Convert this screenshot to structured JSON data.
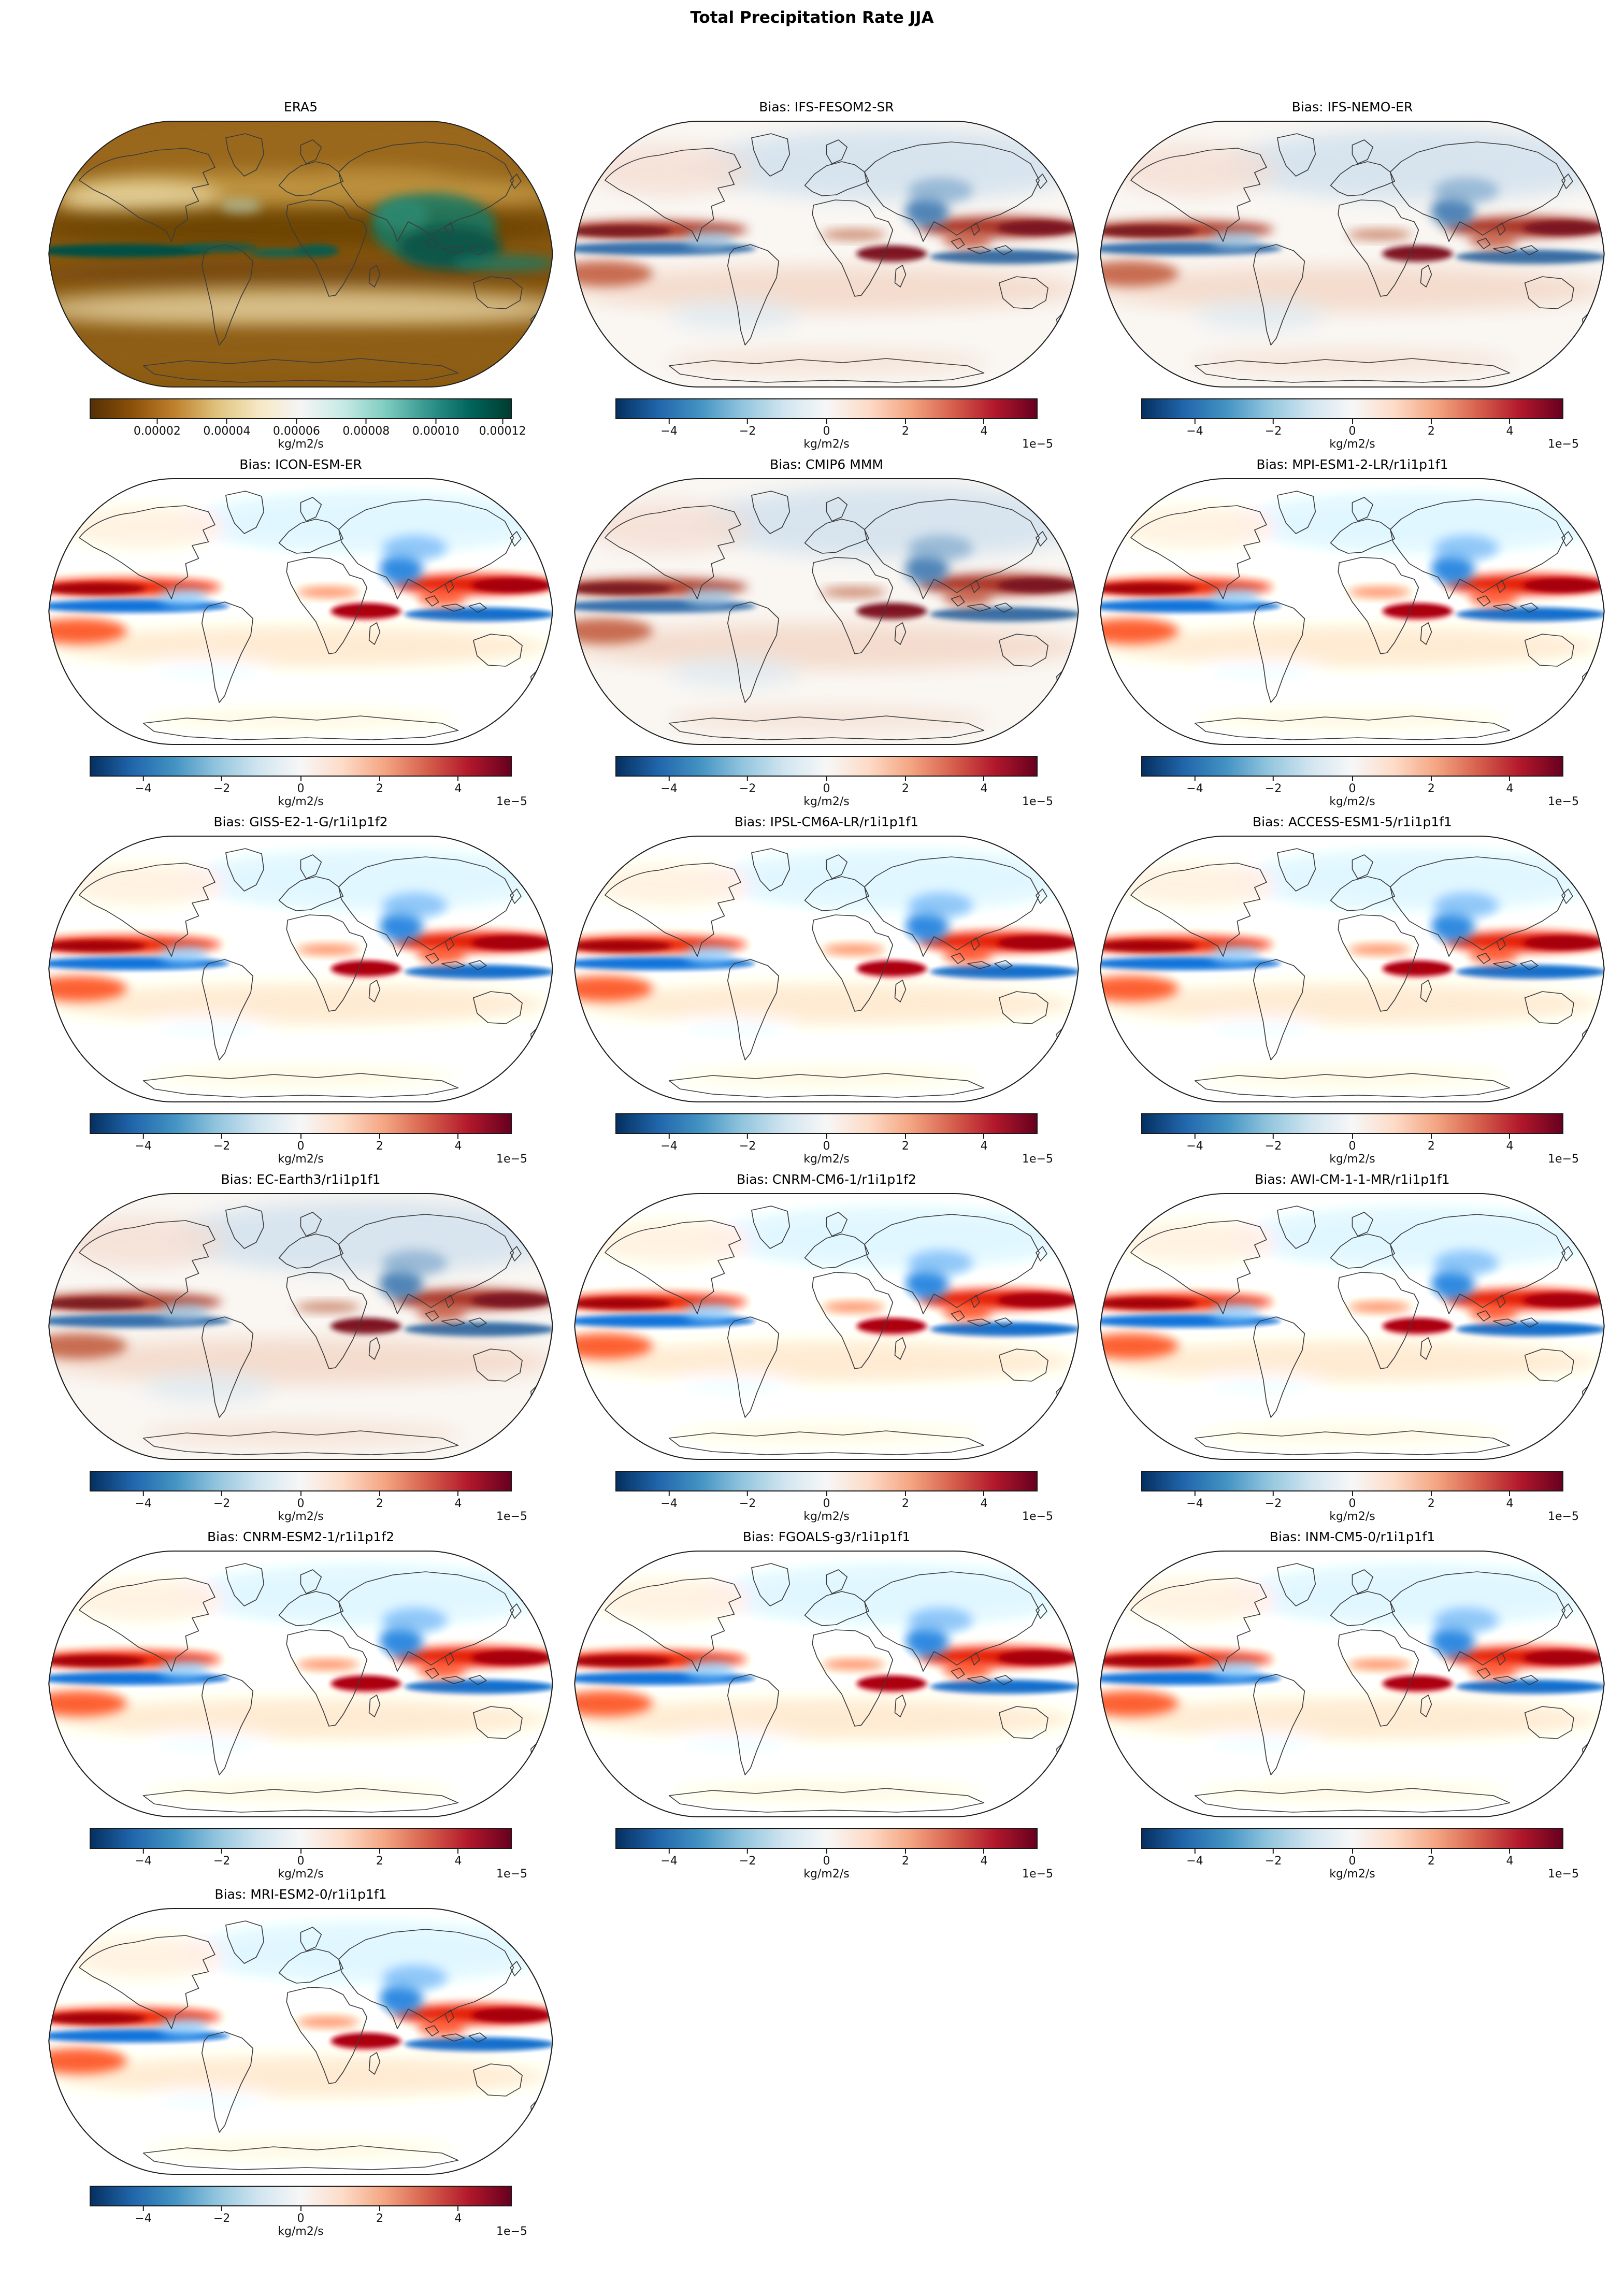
{
  "figure": {
    "title": "Total Precipitation Rate JJA"
  },
  "chart_data": {
    "type": "heatmap",
    "subtype": "global-map-grid",
    "projection": "Robinson",
    "title": "Total Precipitation Rate JJA",
    "grid": {
      "rows": 6,
      "cols": 3,
      "total_panels": 16
    },
    "reference_panel": {
      "title": "ERA5",
      "colormap": "BrBG",
      "unit": "kg/m2/s",
      "colorbar_ticks": [
        2e-05,
        4e-05,
        6e-05,
        8e-05,
        0.0001,
        0.00012
      ]
    },
    "bias_panels": [
      "Bias: IFS-FESOM2-SR",
      "Bias: IFS-NEMO-ER",
      "Bias: ICON-ESM-ER",
      "Bias: CMIP6 MMM",
      "Bias: MPI-ESM1-2-LR/r1i1p1f1",
      "Bias: GISS-E2-1-G/r1i1p1f2",
      "Bias: IPSL-CM6A-LR/r1i1p1f1",
      "Bias: ACCESS-ESM1-5/r1i1p1f1",
      "Bias: EC-Earth3/r1i1p1f1",
      "Bias: CNRM-CM6-1/r1i1p1f2",
      "Bias: AWI-CM-1-1-MR/r1i1p1f1",
      "Bias: CNRM-ESM2-1/r1i1p1f2",
      "Bias: FGOALS-g3/r1i1p1f1",
      "Bias: INM-CM5-0/r1i1p1f1",
      "Bias: MRI-ESM2-0/r1i1p1f1"
    ],
    "bias_colorbar": {
      "colormap": "RdBu_r",
      "ticks": [
        -4,
        -2,
        0,
        2,
        4
      ],
      "scale": "1e-5",
      "unit": "kg/m2/s",
      "range_approx": [
        -5.4e-05,
        5.4e-05
      ]
    }
  },
  "colormaps": {
    "era5": [
      "#543005",
      "#8c510a",
      "#bf812d",
      "#dfc27d",
      "#f6e8c3",
      "#f5f5f5",
      "#c7eae5",
      "#80cdc1",
      "#35978f",
      "#01665e",
      "#003c30"
    ],
    "bias": [
      "#053061",
      "#2166ac",
      "#4393c3",
      "#92c5de",
      "#d1e5f0",
      "#f7f7f7",
      "#fddbc7",
      "#f4a582",
      "#d6604d",
      "#b2182b",
      "#67001f"
    ]
  },
  "colorbars": {
    "era5": {
      "colors": "era5",
      "unit": "kg/m2/s",
      "offset": "",
      "ticks": [
        {
          "label": "0.00002",
          "pos": 0.16
        },
        {
          "label": "0.00004",
          "pos": 0.325
        },
        {
          "label": "0.00006",
          "pos": 0.49
        },
        {
          "label": "0.00008",
          "pos": 0.655
        },
        {
          "label": "0.00010",
          "pos": 0.82
        },
        {
          "label": "0.00012",
          "pos": 0.978
        }
      ]
    },
    "bias": {
      "colors": "bias",
      "unit": "kg/m2/s",
      "offset": "1e−5",
      "ticks": [
        {
          "label": "−4",
          "pos": 0.127
        },
        {
          "label": "−2",
          "pos": 0.313
        },
        {
          "label": "0",
          "pos": 0.5
        },
        {
          "label": "2",
          "pos": 0.687
        },
        {
          "label": "4",
          "pos": 0.873
        }
      ]
    }
  },
  "panels": [
    {
      "title": "ERA5",
      "art": "reference",
      "strength": "reference",
      "colorbar": "era5"
    },
    {
      "title": "Bias: IFS-FESOM2-SR",
      "art": "bias",
      "strength": "moderate",
      "colorbar": "bias"
    },
    {
      "title": "Bias: IFS-NEMO-ER",
      "art": "bias",
      "strength": "moderate",
      "colorbar": "bias"
    },
    {
      "title": "Bias: ICON-ESM-ER",
      "art": "bias",
      "strength": "strong",
      "colorbar": "bias"
    },
    {
      "title": "Bias: CMIP6 MMM",
      "art": "bias",
      "strength": "moderate",
      "colorbar": "bias"
    },
    {
      "title": "Bias: MPI-ESM1-2-LR/r1i1p1f1",
      "art": "bias",
      "strength": "strong",
      "colorbar": "bias"
    },
    {
      "title": "Bias: GISS-E2-1-G/r1i1p1f2",
      "art": "bias",
      "strength": "strong",
      "colorbar": "bias"
    },
    {
      "title": "Bias: IPSL-CM6A-LR/r1i1p1f1",
      "art": "bias",
      "strength": "strong",
      "colorbar": "bias"
    },
    {
      "title": "Bias: ACCESS-ESM1-5/r1i1p1f1",
      "art": "bias",
      "strength": "strong",
      "colorbar": "bias"
    },
    {
      "title": "Bias: EC-Earth3/r1i1p1f1",
      "art": "bias",
      "strength": "moderate",
      "colorbar": "bias"
    },
    {
      "title": "Bias: CNRM-CM6-1/r1i1p1f2",
      "art": "bias",
      "strength": "strong",
      "colorbar": "bias"
    },
    {
      "title": "Bias: AWI-CM-1-1-MR/r1i1p1f1",
      "art": "bias",
      "strength": "strong",
      "colorbar": "bias"
    },
    {
      "title": "Bias: CNRM-ESM2-1/r1i1p1f2",
      "art": "bias",
      "strength": "strong",
      "colorbar": "bias"
    },
    {
      "title": "Bias: FGOALS-g3/r1i1p1f1",
      "art": "bias",
      "strength": "strong",
      "colorbar": "bias"
    },
    {
      "title": "Bias: INM-CM5-0/r1i1p1f1",
      "art": "bias",
      "strength": "strong",
      "colorbar": "bias"
    },
    {
      "title": "Bias: MRI-ESM2-0/r1i1p1f1",
      "art": "bias",
      "strength": "strong",
      "colorbar": "bias"
    }
  ]
}
